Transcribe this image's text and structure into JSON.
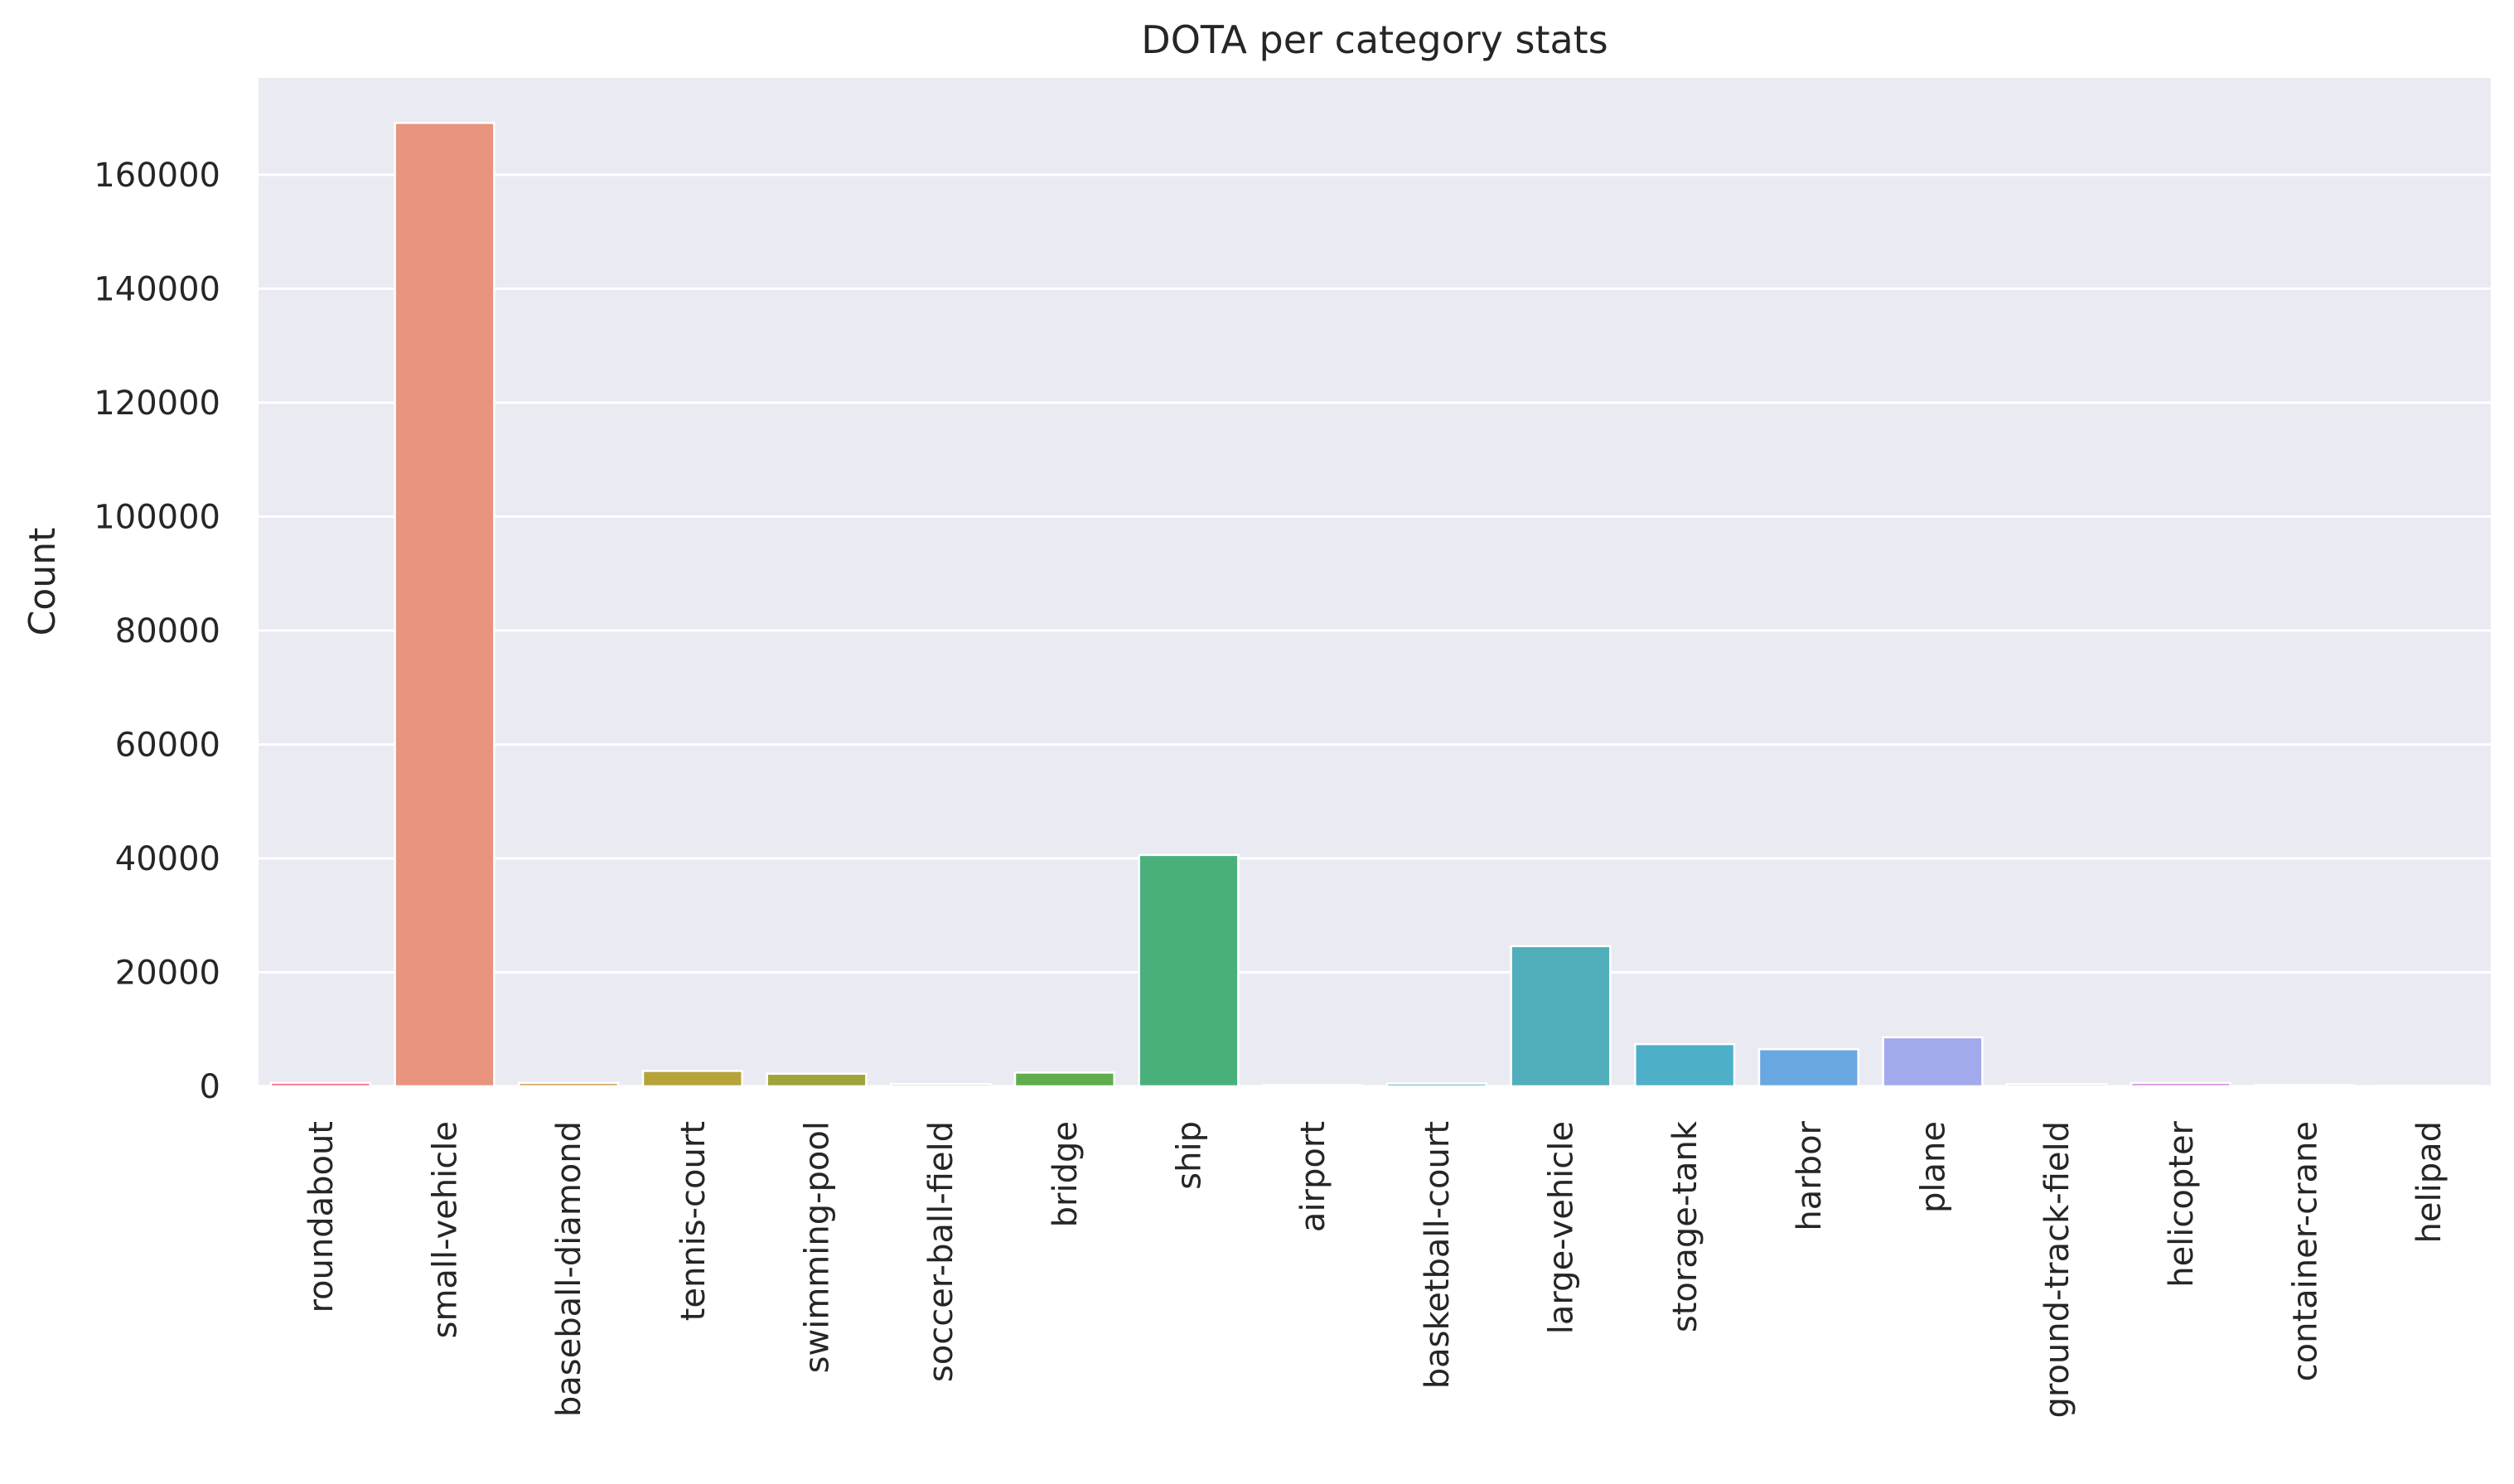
{
  "chart_data": {
    "type": "bar",
    "title": "DOTA per category stats",
    "xlabel": "",
    "ylabel": "Count",
    "ylim": [
      0,
      177000
    ],
    "yticks": [
      0,
      20000,
      40000,
      60000,
      80000,
      100000,
      120000,
      140000,
      160000
    ],
    "grid": true,
    "background": "#EAEAF2",
    "categories": [
      "roundabout",
      "small-vehicle",
      "baseball-diamond",
      "tennis-court",
      "swimming-pool",
      "soccer-ball-field",
      "bridge",
      "ship",
      "airport",
      "basketball-court",
      "large-vehicle",
      "storage-tank",
      "harbor",
      "plane",
      "ground-track-field",
      "helicopter",
      "container-crane",
      "helipad"
    ],
    "values": [
      620,
      169100,
      600,
      2700,
      2200,
      400,
      2400,
      40600,
      200,
      500,
      24600,
      7400,
      6500,
      8600,
      400,
      600,
      200,
      100
    ],
    "colors": [
      "#F77189",
      "#E8947E",
      "#D7A460",
      "#B6A43A",
      "#9EA43A",
      "#8BAA3B",
      "#5FAD4E",
      "#4AB07B",
      "#50B09B",
      "#51AFB1",
      "#50AFBA",
      "#4EAFC8",
      "#69A7E0",
      "#A2A9EC",
      "#C39AE4",
      "#DC8EDC",
      "#EE80CC",
      "#F47DAF"
    ]
  }
}
